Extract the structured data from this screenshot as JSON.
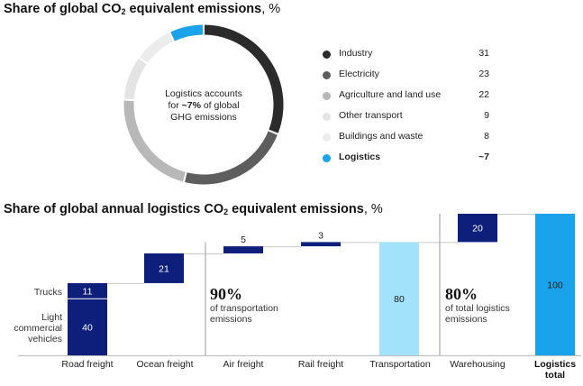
{
  "title1": {
    "main": "Share of global CO",
    "sub": "2",
    "rest": " equivalent emissions",
    "unit": ", %"
  },
  "title2": {
    "main": "Share of global annual logistics CO",
    "sub": "2",
    "rest": " equivalent emissions",
    "unit": ", %"
  },
  "donut_note": {
    "line1": "Logistics accounts",
    "pre": "for ",
    "bold": "~7%",
    "post": " of global",
    "line3": "GHG emissions"
  },
  "legend": [
    {
      "label": "Industry",
      "value": "31",
      "color": "#2b2b2b"
    },
    {
      "label": "Electricity",
      "value": "23",
      "color": "#5e5e5e"
    },
    {
      "label": "Agriculture and land use",
      "value": "22",
      "color": "#b8b8b8"
    },
    {
      "label": "Other transport",
      "value": "9",
      "color": "#e4e4e4"
    },
    {
      "label": "Buildings and waste",
      "value": "8",
      "color": "#ececec"
    },
    {
      "label": "Logistics",
      "value": "~7",
      "color": "#1aa3ea"
    }
  ],
  "side_labels": {
    "trucks": "Trucks",
    "lcv1": "Light",
    "lcv2": "commercial",
    "lcv3": "vehicles"
  },
  "note1": {
    "big": "90%",
    "line1": "of transportation",
    "line2": "emissions"
  },
  "note2": {
    "big": "80%",
    "line1": "of total logistics",
    "line2": "emissions"
  },
  "categories": {
    "road": "Road freight",
    "ocean": "Ocean freight",
    "air": "Air freight",
    "rail": "Rail freight",
    "transport": "Transportation",
    "warehousing": "Warehousing",
    "total1": "Logistics",
    "total2": "total"
  },
  "chart_data": [
    {
      "type": "pie",
      "title": "Share of global CO2 equivalent emissions, %",
      "categories": [
        "Industry",
        "Electricity",
        "Agriculture and land use",
        "Other transport",
        "Buildings and waste",
        "Logistics"
      ],
      "values": [
        31,
        23,
        22,
        9,
        8,
        7
      ],
      "colors": [
        "#2b2b2b",
        "#5e5e5e",
        "#b8b8b8",
        "#e4e4e4",
        "#ececec",
        "#1aa3ea"
      ]
    },
    {
      "type": "bar",
      "subtype": "waterfall",
      "title": "Share of global annual logistics CO2 equivalent emissions, %",
      "ylim": [
        0,
        100
      ],
      "bars": [
        {
          "category": "Road freight",
          "segments": [
            {
              "name": "Light commercial vehicles",
              "value": 40
            },
            {
              "name": "Trucks",
              "value": 11
            }
          ],
          "start": 0,
          "color": "#0d1f7a"
        },
        {
          "category": "Ocean freight",
          "value": 21,
          "start": 51,
          "color": "#0d1f7a"
        },
        {
          "category": "Air freight",
          "value": 5,
          "start": 72,
          "color": "#0d1f7a"
        },
        {
          "category": "Rail freight",
          "value": 3,
          "start": 77,
          "color": "#0d1f7a"
        },
        {
          "category": "Transportation",
          "value": 80,
          "start": 0,
          "color": "#a3e2fb"
        },
        {
          "category": "Warehousing",
          "value": 20,
          "start": 80,
          "color": "#0d1f7a"
        },
        {
          "category": "Logistics total",
          "value": 100,
          "start": 0,
          "color": "#1aa3ea"
        }
      ]
    }
  ]
}
